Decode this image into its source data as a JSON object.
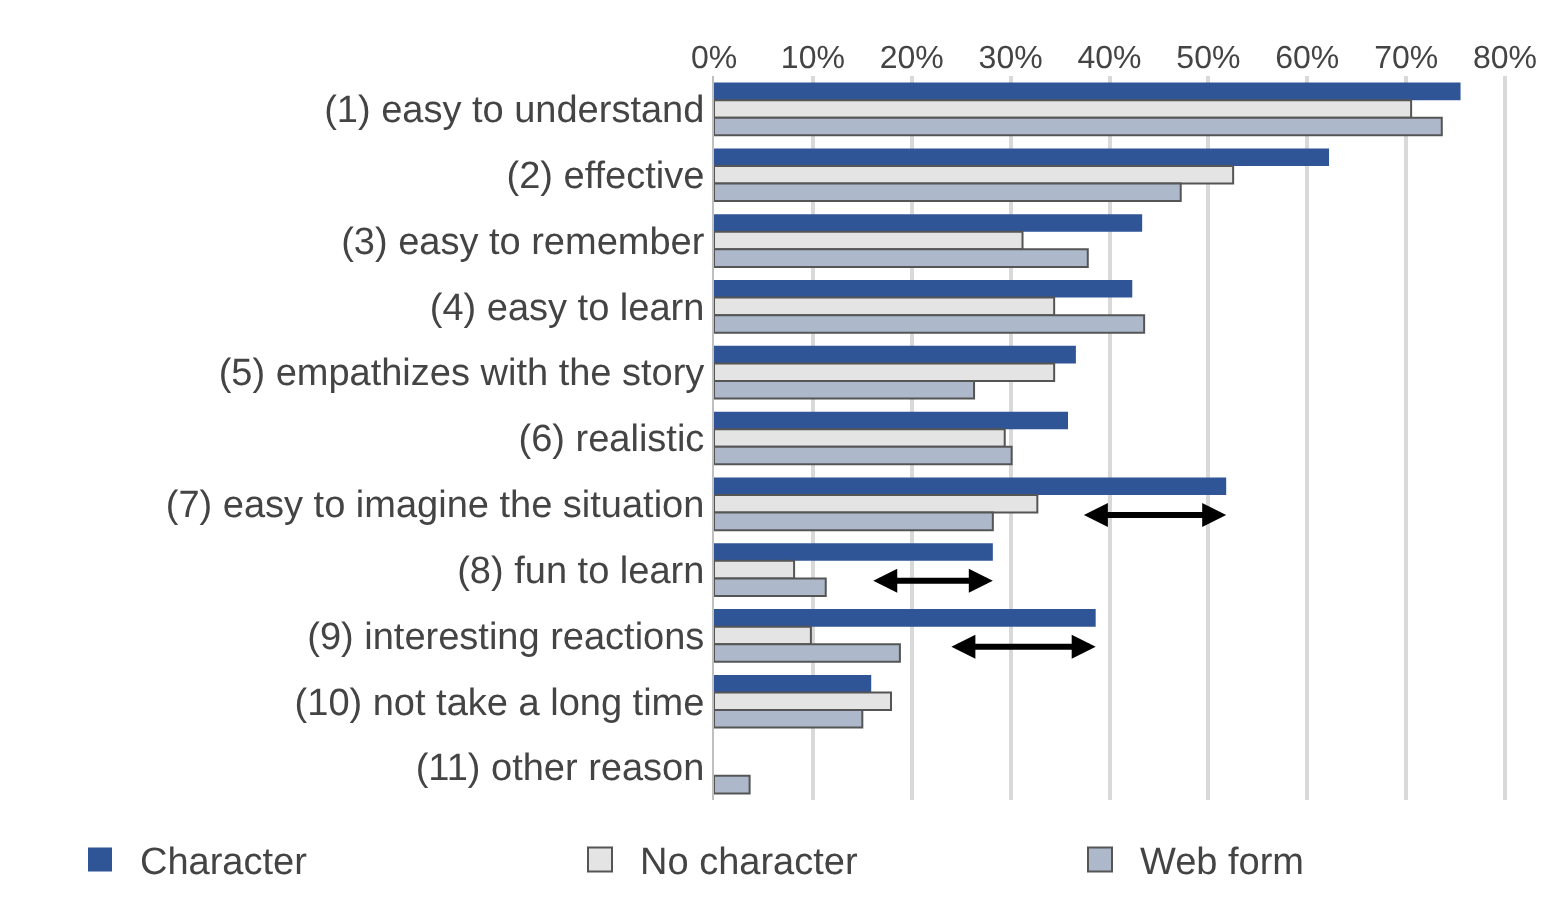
{
  "chart_data": {
    "type": "bar",
    "orientation": "horizontal",
    "categories": [
      "(1) easy to understand",
      "(2) effective",
      "(3) easy to remember",
      "(4) easy to learn",
      "(5) empathizes with the story",
      "(6) realistic",
      "(7) easy to imagine the situation",
      "(8) fun to learn",
      "(9) interesting reactions",
      "(10) not take a long time",
      "(11) other reason"
    ],
    "series": [
      {
        "name": "Character",
        "color": "#2f5597",
        "values": [
          75.5,
          62.2,
          43.3,
          42.3,
          36.6,
          35.8,
          51.8,
          28.2,
          38.6,
          15.9,
          null
        ]
      },
      {
        "name": "No character",
        "color": "#e4e4e4",
        "values": [
          70.5,
          52.5,
          31.2,
          34.4,
          34.4,
          29.4,
          32.7,
          8.1,
          9.8,
          17.9,
          null
        ]
      },
      {
        "name": "Web form",
        "color": "#adb9ca",
        "values": [
          73.6,
          47.2,
          37.8,
          43.5,
          26.3,
          30.1,
          28.2,
          11.3,
          18.8,
          15.0,
          3.6
        ]
      }
    ],
    "xlim": [
      0,
      80.5
    ],
    "xticks": [
      {
        "value": 0,
        "label": "0%"
      },
      {
        "value": 10,
        "label": "10%"
      },
      {
        "value": 20,
        "label": "20%"
      },
      {
        "value": 30,
        "label": "30%"
      },
      {
        "value": 40,
        "label": "40%"
      },
      {
        "value": 50,
        "label": "50%"
      },
      {
        "value": 60,
        "label": "60%"
      },
      {
        "value": 70,
        "label": "70%"
      },
      {
        "value": 80,
        "label": "80%"
      }
    ],
    "grid": "x",
    "legend": "bottom"
  }
}
